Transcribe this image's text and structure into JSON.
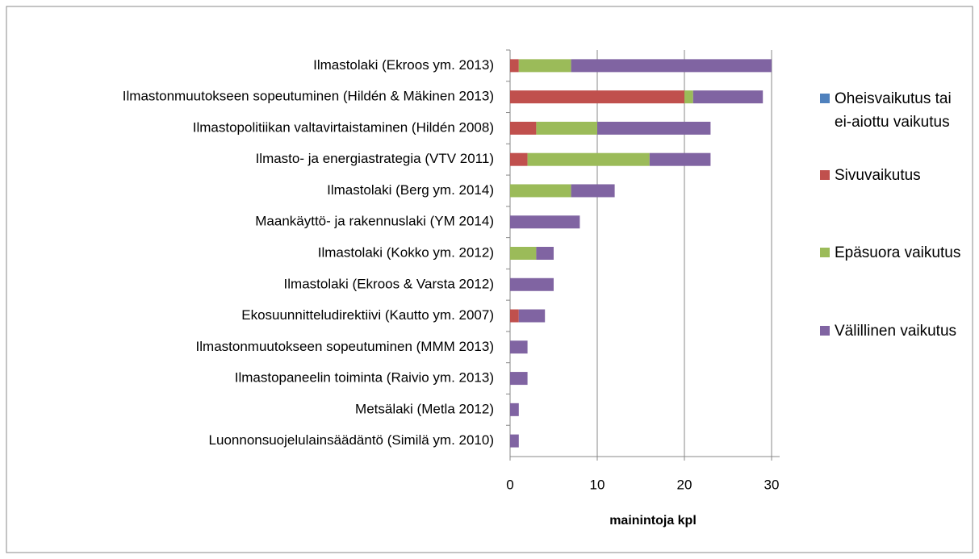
{
  "chart_data": {
    "type": "stacked-barh",
    "x_label": "mainintoja kpl",
    "categories": [
      "Ilmastolaki (Ekroos ym. 2013)",
      "Ilmastonmuutokseen sopeutuminen (Hildén & Mäkinen 2013)",
      "Ilmastopolitiikan valtavirtaistaminen (Hildén 2008)",
      "Ilmasto- ja energiastrategia (VTV 2011)",
      "Ilmastolaki (Berg ym. 2014)",
      "Maankäyttö- ja rakennuslaki (YM 2014)",
      "Ilmastolaki (Kokko ym. 2012)",
      "Ilmastolaki (Ekroos & Varsta 2012)",
      "Ekosuunnitteludirektiivi (Kautto ym. 2007)",
      "Ilmastonmuutokseen sopeutuminen (MMM 2013)",
      "Ilmastopaneelin toiminta (Raivio ym. 2013)",
      "Metsälaki (Metla 2012)",
      "Luonnonsuojelulainsäädäntö (Similä ym. 2010)"
    ],
    "series": [
      {
        "name": "Oheisvaikutus tai ei-aiottu vaikutus",
        "color": "#4f81bd",
        "values": [
          0,
          0,
          0,
          0,
          0,
          0,
          0,
          0,
          0,
          0,
          0,
          0,
          0
        ]
      },
      {
        "name": "Sivuvaikutus",
        "color": "#c0504d",
        "values": [
          1,
          20,
          3,
          2,
          0,
          0,
          0,
          0,
          1,
          0,
          0,
          0,
          0
        ]
      },
      {
        "name": "Epäsuora vaikutus",
        "color": "#9bbb59",
        "values": [
          6,
          1,
          7,
          14,
          7,
          0,
          3,
          0,
          0,
          0,
          0,
          0,
          0
        ]
      },
      {
        "name": "Välillinen vaikutus",
        "color": "#8064a2",
        "values": [
          23,
          8,
          13,
          7,
          5,
          8,
          2,
          5,
          3,
          2,
          2,
          1,
          1
        ]
      }
    ],
    "xlim": [
      0,
      30
    ],
    "xticks": [
      0,
      10,
      20,
      30
    ],
    "grid": true,
    "legend": "right"
  }
}
